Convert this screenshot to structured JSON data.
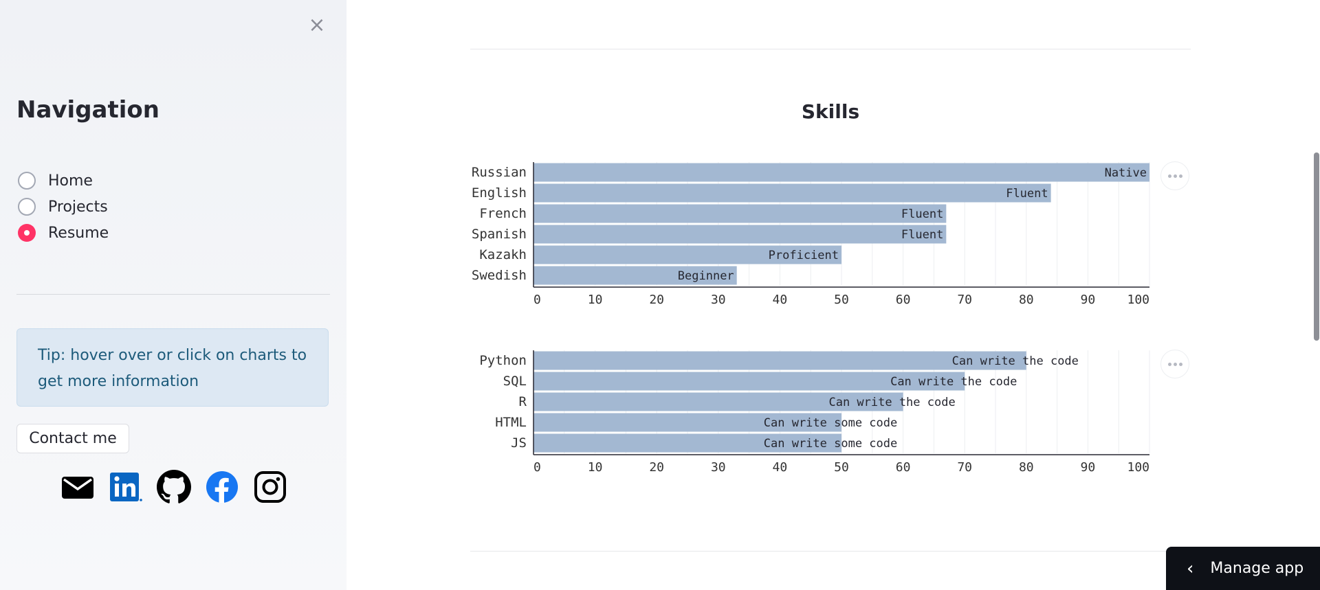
{
  "sidebar": {
    "close_icon": "×",
    "title": "Navigation",
    "options": [
      {
        "label": "Home",
        "selected": false
      },
      {
        "label": "Projects",
        "selected": false
      },
      {
        "label": "Resume",
        "selected": true
      }
    ],
    "tip": "Tip: hover over or click on charts to get more information",
    "contact_button": "Contact me",
    "social": [
      "mail-icon",
      "linkedin-icon",
      "github-icon",
      "facebook-icon",
      "instagram-icon"
    ]
  },
  "main": {
    "section_title": "Skills",
    "manage_app_label": "Manage app",
    "manage_app_icon": "‹"
  },
  "colors": {
    "accent": "#ff3366",
    "bar": "#a3b8d2",
    "tip_bg": "#dde8f3",
    "tip_text": "#1c5a7a"
  },
  "chart_data": [
    {
      "type": "bar",
      "orientation": "horizontal",
      "categories": [
        "Russian",
        "English",
        "French",
        "Spanish",
        "Kazakh",
        "Swedish"
      ],
      "values": [
        100,
        84,
        67,
        67,
        50,
        33
      ],
      "labels": [
        "Native",
        "Fluent",
        "Fluent",
        "Fluent",
        "Proficient",
        "Beginner"
      ],
      "xlim": [
        0,
        100
      ],
      "xticks": [
        0,
        10,
        20,
        30,
        40,
        50,
        60,
        70,
        80,
        90,
        100
      ],
      "grid": true
    },
    {
      "type": "bar",
      "orientation": "horizontal",
      "categories": [
        "Python",
        "SQL",
        "R",
        "HTML",
        "JS"
      ],
      "values": [
        80,
        70,
        60,
        50,
        50
      ],
      "labels": [
        "Can write the code",
        "Can write the code",
        "Can write the code",
        "Can write some code",
        "Can write some code"
      ],
      "xlim": [
        0,
        100
      ],
      "xticks": [
        0,
        10,
        20,
        30,
        40,
        50,
        60,
        70,
        80,
        90,
        100
      ],
      "grid": true
    }
  ]
}
